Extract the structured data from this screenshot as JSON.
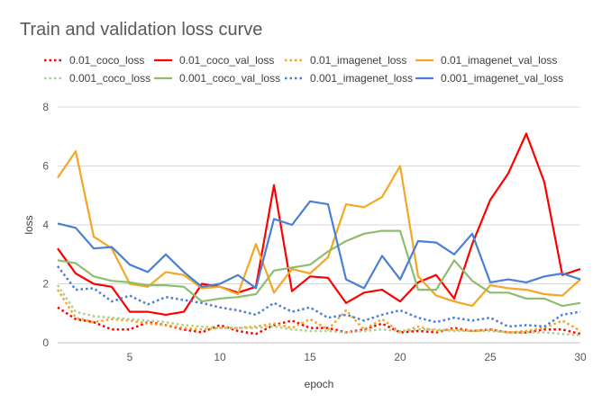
{
  "chart_data": {
    "type": "line",
    "title": "Train and validation loss curve",
    "xlabel": "epoch",
    "ylabel": "loss",
    "xlim": [
      1,
      30
    ],
    "ylim": [
      0,
      8
    ],
    "xticks": [
      5,
      10,
      15,
      20,
      25,
      30
    ],
    "yticks": [
      0,
      2,
      4,
      6,
      8
    ],
    "grid": "horizontal",
    "legend_position": "top",
    "x": [
      1,
      2,
      3,
      4,
      5,
      6,
      7,
      8,
      9,
      10,
      11,
      12,
      13,
      14,
      15,
      16,
      17,
      18,
      19,
      20,
      21,
      22,
      23,
      24,
      25,
      26,
      27,
      28,
      29,
      30
    ],
    "series": [
      {
        "name": "0.01_coco_loss",
        "color": "#ff0000",
        "dash": "dotted",
        "values": [
          1.2,
          0.8,
          0.7,
          0.45,
          0.45,
          0.7,
          0.6,
          0.45,
          0.35,
          0.6,
          0.4,
          0.3,
          0.6,
          0.75,
          0.5,
          0.5,
          0.35,
          0.45,
          0.65,
          0.35,
          0.4,
          0.35,
          0.5,
          0.4,
          0.45,
          0.35,
          0.35,
          0.45,
          0.45,
          0.3
        ]
      },
      {
        "name": "0.01_coco_val_loss",
        "color": "#ff0000",
        "dash": "solid",
        "values": [
          3.2,
          2.35,
          2.0,
          1.9,
          1.05,
          1.05,
          0.95,
          1.05,
          2.0,
          1.9,
          1.7,
          1.9,
          5.35,
          1.75,
          2.25,
          2.2,
          1.35,
          1.7,
          1.8,
          1.4,
          2.05,
          2.3,
          1.5,
          3.35,
          4.85,
          5.75,
          7.1,
          5.45,
          2.3,
          2.5
        ]
      },
      {
        "name": "0.01_imagenet_loss",
        "color": "#f5a623",
        "dash": "dotted",
        "values": [
          1.8,
          0.85,
          0.7,
          0.8,
          0.75,
          0.65,
          0.6,
          0.5,
          0.45,
          0.5,
          0.5,
          0.55,
          0.65,
          0.5,
          0.8,
          0.45,
          1.1,
          0.45,
          0.8,
          0.35,
          0.55,
          0.4,
          0.45,
          0.4,
          0.45,
          0.35,
          0.4,
          0.5,
          0.75,
          0.4
        ]
      },
      {
        "name": "0.01_imagenet_val_loss",
        "color": "#f5a623",
        "dash": "solid",
        "values": [
          5.6,
          6.5,
          3.6,
          3.2,
          2.0,
          1.9,
          2.4,
          2.3,
          1.85,
          1.9,
          1.65,
          3.35,
          1.7,
          2.5,
          2.35,
          2.9,
          4.7,
          4.6,
          4.95,
          6.0,
          2.25,
          1.6,
          1.4,
          1.25,
          1.95,
          1.85,
          1.8,
          1.65,
          1.6,
          2.15
        ]
      },
      {
        "name": "0.001_coco_loss",
        "color": "#a9d18e",
        "dash": "dotted",
        "values": [
          1.95,
          1.05,
          0.9,
          0.85,
          0.8,
          0.75,
          0.7,
          0.6,
          0.55,
          0.5,
          0.5,
          0.5,
          0.55,
          0.45,
          0.4,
          0.4,
          0.35,
          0.4,
          0.45,
          0.4,
          0.45,
          0.45,
          0.4,
          0.4,
          0.4,
          0.35,
          0.35,
          0.35,
          0.3,
          0.25
        ]
      },
      {
        "name": "0.001_coco_val_loss",
        "color": "#8fbc6e",
        "dash": "solid",
        "values": [
          2.8,
          2.7,
          2.25,
          2.1,
          2.05,
          1.95,
          1.95,
          1.9,
          1.4,
          1.5,
          1.55,
          1.65,
          2.45,
          2.55,
          2.65,
          3.1,
          3.45,
          3.7,
          3.8,
          3.8,
          1.8,
          1.8,
          2.8,
          2.1,
          1.7,
          1.7,
          1.5,
          1.5,
          1.25,
          1.35
        ]
      },
      {
        "name": "0.001_imagenet_loss",
        "color": "#4a7fd4",
        "dash": "dotted",
        "values": [
          2.6,
          1.8,
          1.85,
          1.4,
          1.6,
          1.3,
          1.55,
          1.45,
          1.35,
          1.2,
          1.1,
          0.95,
          1.35,
          1.05,
          1.2,
          0.85,
          0.95,
          0.75,
          0.95,
          1.1,
          0.85,
          0.7,
          0.85,
          0.75,
          0.85,
          0.55,
          0.6,
          0.55,
          0.95,
          1.05
        ]
      },
      {
        "name": "0.001_imagenet_val_loss",
        "color": "#4a7fd4",
        "dash": "solid",
        "values": [
          4.05,
          3.9,
          3.2,
          3.25,
          2.65,
          2.4,
          3.0,
          2.4,
          1.9,
          2.0,
          2.3,
          1.85,
          4.2,
          4.0,
          4.8,
          4.7,
          2.15,
          1.85,
          2.95,
          2.15,
          3.45,
          3.4,
          3.0,
          3.7,
          2.05,
          2.15,
          2.05,
          2.25,
          2.35,
          2.15
        ]
      }
    ]
  }
}
